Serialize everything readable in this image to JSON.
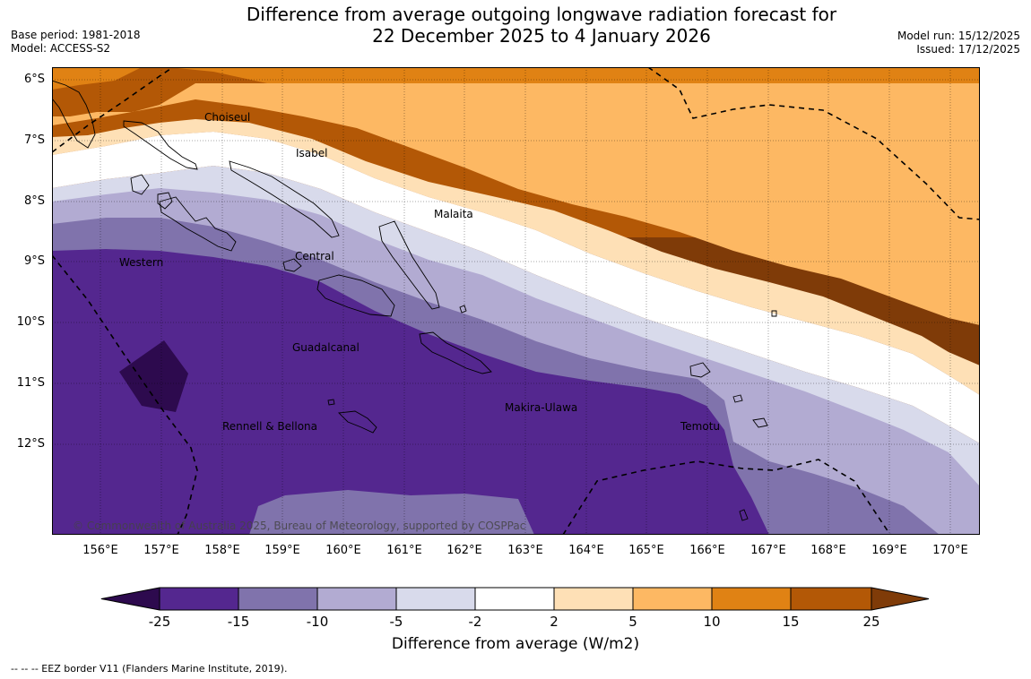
{
  "header": {
    "title_line1": "Difference from average outgoing longwave radiation forecast for",
    "title_line2": "22 December 2025 to 4 January 2026",
    "base_period": "Base period: 1981-2018",
    "model": "Model: ACCESS-S2",
    "model_run": "Model run: 15/12/2025",
    "issued": "Issued: 17/12/2025"
  },
  "map": {
    "lat_labels": [
      "6°S",
      "7°S",
      "8°S",
      "9°S",
      "10°S",
      "11°S",
      "12°S"
    ],
    "lon_labels": [
      "156°E",
      "157°E",
      "158°E",
      "159°E",
      "160°E",
      "161°E",
      "162°E",
      "163°E",
      "164°E",
      "165°E",
      "166°E",
      "167°E",
      "168°E",
      "169°E",
      "170°E"
    ],
    "lon_range": [
      155.2,
      170.5
    ],
    "lat_range": [
      -5.8,
      -13.5
    ],
    "province_labels": [
      "Choiseul",
      "Isabel",
      "Malaita",
      "Central",
      "Western",
      "Guadalcanal",
      "Makira-Ulawa",
      "Rennell & Bellona",
      "Temotu"
    ],
    "copyright": "© Commonwealth of Australia 2025, Bureau of Meteorology, supported by COSPPac"
  },
  "legend": {
    "ticks": [
      "-25",
      "-15",
      "-10",
      "-5",
      "-2",
      "2",
      "5",
      "10",
      "15",
      "25"
    ],
    "colors": {
      "below_-25": "#2d0a4e",
      "-25_-15": "#54278f",
      "-15_-10": "#8073ac",
      "-10_-5": "#b2abd2",
      "-5_-2": "#d8daeb",
      "-2_2": "#ffffff",
      "2_5": "#fee0b6",
      "5_10": "#fdb863",
      "10_15": "#e08214",
      "15_25": "#b35806",
      "above_25": "#7f3b08"
    },
    "title": "Difference from average (W/m2)"
  },
  "footer": {
    "eez_note": "--  --  -- EEZ border V11 (Flanders Marine Institute, 2019)."
  }
}
